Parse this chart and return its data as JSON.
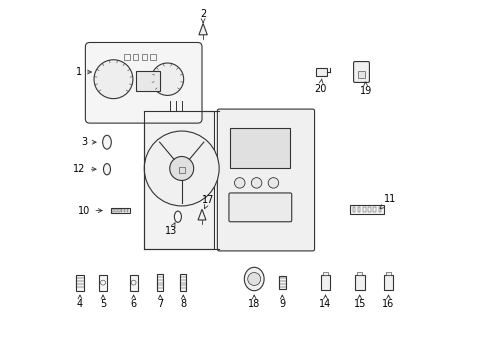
{
  "background_color": "#ffffff",
  "line_color": "#333333",
  "text_color": "#000000",
  "lw": 0.8,
  "fontsize": 7
}
